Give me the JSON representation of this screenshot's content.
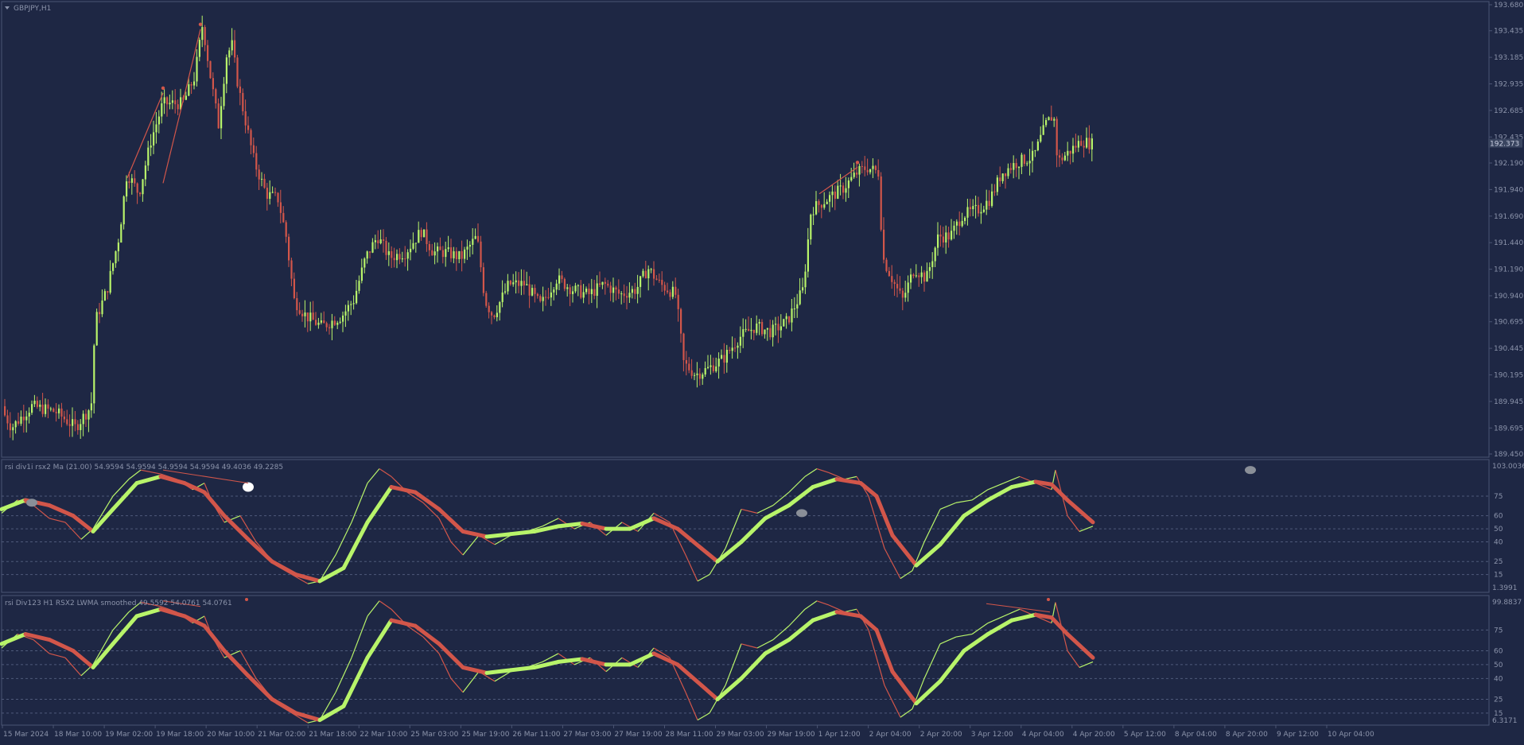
{
  "colors": {
    "background": "#1e2744",
    "grid_border": "#4a5473",
    "bull": "#b8f46a",
    "bear": "#d2564a",
    "level_line": "#4f5a7a",
    "text": "#8b93aa",
    "price_tag_bg": "#3a4560",
    "marker_grey": "#8a8f98"
  },
  "main_pane": {
    "title": "GBPJPY,H1",
    "title_icon": "triangle-down-icon",
    "current_price": "192.373",
    "price_axis": [
      "193.680",
      "193.435",
      "193.185",
      "192.935",
      "192.685",
      "192.435",
      "192.190",
      "191.940",
      "191.690",
      "191.440",
      "191.190",
      "190.940",
      "190.695",
      "190.445",
      "190.195",
      "189.945",
      "189.695",
      "189.450"
    ]
  },
  "indicator1": {
    "title": "rsi div1i rsx2 Ma (21.00) 54.9594 54.9594 54.9594 54.9594 49.4036 49.2285",
    "axis_top": "103.0036",
    "axis_bottom": "1.3991",
    "levels": [
      "75",
      "60",
      "50",
      "40",
      "25",
      "15"
    ]
  },
  "indicator2": {
    "title": "rsi Div123 H1 RSX2 LWMA smoothed  49.5592 54.0761 54.0761",
    "axis_top": "99.8837",
    "axis_bottom": "6.3171",
    "levels": [
      "75",
      "60",
      "50",
      "40",
      "25",
      "15"
    ]
  },
  "time_axis": [
    "15 Mar 2024",
    "18 Mar 10:00",
    "19 Mar 02:00",
    "19 Mar 18:00",
    "20 Mar 10:00",
    "21 Mar 02:00",
    "21 Mar 18:00",
    "22 Mar 10:00",
    "25 Mar 03:00",
    "25 Mar 19:00",
    "26 Mar 11:00",
    "27 Mar 03:00",
    "27 Mar 19:00",
    "28 Mar 11:00",
    "29 Mar 03:00",
    "29 Mar 19:00",
    "1 Apr 12:00",
    "2 Apr 04:00",
    "2 Apr 20:00",
    "3 Apr 12:00",
    "4 Apr 04:00",
    "4 Apr 20:00",
    "5 Apr 12:00",
    "8 Apr 04:00",
    "8 Apr 20:00",
    "9 Apr 12:00",
    "10 Apr 04:00"
  ],
  "chart_data": {
    "type": "candlestick",
    "symbol": "GBPJPY",
    "timeframe": "H1",
    "ylim": [
      189.45,
      193.68
    ],
    "last_price": 192.373,
    "price_path": [
      [
        0,
        189.9
      ],
      [
        15,
        189.7
      ],
      [
        40,
        189.9
      ],
      [
        70,
        189.85
      ],
      [
        95,
        189.7
      ],
      [
        115,
        189.9
      ],
      [
        120,
        190.7
      ],
      [
        135,
        191.0
      ],
      [
        150,
        191.5
      ],
      [
        160,
        192.1
      ],
      [
        175,
        191.9
      ],
      [
        190,
        192.4
      ],
      [
        205,
        192.75
      ],
      [
        230,
        192.75
      ],
      [
        245,
        193.0
      ],
      [
        255,
        193.5
      ],
      [
        265,
        193.0
      ],
      [
        275,
        192.55
      ],
      [
        285,
        193.2
      ],
      [
        292,
        193.3
      ],
      [
        300,
        192.9
      ],
      [
        320,
        192.2
      ],
      [
        335,
        191.9
      ],
      [
        350,
        191.85
      ],
      [
        360,
        191.5
      ],
      [
        370,
        190.9
      ],
      [
        385,
        190.75
      ],
      [
        405,
        190.65
      ],
      [
        430,
        190.75
      ],
      [
        445,
        190.9
      ],
      [
        460,
        191.3
      ],
      [
        475,
        191.5
      ],
      [
        490,
        191.3
      ],
      [
        510,
        191.35
      ],
      [
        530,
        191.55
      ],
      [
        545,
        191.35
      ],
      [
        560,
        191.35
      ],
      [
        580,
        191.3
      ],
      [
        600,
        191.5
      ],
      [
        610,
        190.9
      ],
      [
        620,
        190.75
      ],
      [
        640,
        191.05
      ],
      [
        660,
        191.05
      ],
      [
        680,
        190.85
      ],
      [
        700,
        191.1
      ],
      [
        720,
        191.0
      ],
      [
        740,
        190.95
      ],
      [
        760,
        191.05
      ],
      [
        780,
        190.95
      ],
      [
        800,
        191.0
      ],
      [
        815,
        191.2
      ],
      [
        830,
        191.05
      ],
      [
        850,
        190.95
      ],
      [
        860,
        190.3
      ],
      [
        875,
        190.2
      ],
      [
        890,
        190.25
      ],
      [
        910,
        190.35
      ],
      [
        930,
        190.55
      ],
      [
        950,
        190.65
      ],
      [
        970,
        190.6
      ],
      [
        990,
        190.7
      ],
      [
        1010,
        191.0
      ],
      [
        1020,
        191.75
      ],
      [
        1040,
        191.85
      ],
      [
        1060,
        191.95
      ],
      [
        1078,
        192.1
      ],
      [
        1090,
        192.15
      ],
      [
        1105,
        192.1
      ],
      [
        1110,
        191.3
      ],
      [
        1125,
        191.05
      ],
      [
        1135,
        190.9
      ],
      [
        1150,
        191.2
      ],
      [
        1165,
        191.1
      ],
      [
        1180,
        191.5
      ],
      [
        1195,
        191.5
      ],
      [
        1210,
        191.7
      ],
      [
        1230,
        191.75
      ],
      [
        1245,
        191.85
      ],
      [
        1260,
        192.1
      ],
      [
        1280,
        192.2
      ],
      [
        1300,
        192.25
      ],
      [
        1315,
        192.55
      ],
      [
        1325,
        192.65
      ],
      [
        1330,
        192.2
      ],
      [
        1345,
        192.3
      ],
      [
        1360,
        192.4
      ],
      [
        1372,
        192.37
      ]
    ],
    "indicator_rsi_div1i": {
      "levels": [
        75,
        60,
        50,
        40,
        25,
        15
      ],
      "ylim": [
        1.3991,
        103.0036
      ],
      "rsi": [
        [
          0,
          62
        ],
        [
          20,
          72
        ],
        [
          40,
          68
        ],
        [
          60,
          58
        ],
        [
          80,
          55
        ],
        [
          100,
          42
        ],
        [
          115,
          50
        ],
        [
          140,
          75
        ],
        [
          160,
          88
        ],
        [
          175,
          95
        ],
        [
          200,
          92
        ],
        [
          220,
          88
        ],
        [
          240,
          80
        ],
        [
          255,
          85
        ],
        [
          265,
          70
        ],
        [
          280,
          55
        ],
        [
          300,
          60
        ],
        [
          320,
          40
        ],
        [
          345,
          22
        ],
        [
          365,
          15
        ],
        [
          385,
          8
        ],
        [
          400,
          10
        ],
        [
          420,
          30
        ],
        [
          440,
          55
        ],
        [
          460,
          85
        ],
        [
          475,
          96
        ],
        [
          490,
          90
        ],
        [
          510,
          78
        ],
        [
          530,
          70
        ],
        [
          550,
          58
        ],
        [
          565,
          40
        ],
        [
          580,
          30
        ],
        [
          600,
          45
        ],
        [
          620,
          38
        ],
        [
          640,
          45
        ],
        [
          660,
          48
        ],
        [
          680,
          52
        ],
        [
          700,
          58
        ],
        [
          720,
          50
        ],
        [
          740,
          55
        ],
        [
          760,
          45
        ],
        [
          780,
          55
        ],
        [
          800,
          48
        ],
        [
          820,
          62
        ],
        [
          840,
          55
        ],
        [
          860,
          30
        ],
        [
          875,
          10
        ],
        [
          890,
          15
        ],
        [
          910,
          35
        ],
        [
          930,
          65
        ],
        [
          950,
          62
        ],
        [
          970,
          68
        ],
        [
          990,
          78
        ],
        [
          1010,
          90
        ],
        [
          1025,
          96
        ],
        [
          1040,
          93
        ],
        [
          1060,
          88
        ],
        [
          1075,
          90
        ],
        [
          1090,
          75
        ],
        [
          1110,
          35
        ],
        [
          1130,
          12
        ],
        [
          1145,
          18
        ],
        [
          1160,
          40
        ],
        [
          1180,
          65
        ],
        [
          1200,
          70
        ],
        [
          1220,
          72
        ],
        [
          1240,
          80
        ],
        [
          1260,
          85
        ],
        [
          1280,
          90
        ],
        [
          1300,
          85
        ],
        [
          1320,
          80
        ],
        [
          1325,
          95
        ],
        [
          1340,
          60
        ],
        [
          1355,
          48
        ],
        [
          1372,
          52
        ]
      ],
      "signal": [
        [
          0,
          65
        ],
        [
          30,
          72
        ],
        [
          60,
          68
        ],
        [
          90,
          60
        ],
        [
          115,
          48
        ],
        [
          140,
          65
        ],
        [
          170,
          85
        ],
        [
          200,
          90
        ],
        [
          230,
          85
        ],
        [
          255,
          78
        ],
        [
          280,
          60
        ],
        [
          310,
          42
        ],
        [
          340,
          25
        ],
        [
          370,
          15
        ],
        [
          400,
          10
        ],
        [
          430,
          20
        ],
        [
          460,
          55
        ],
        [
          490,
          82
        ],
        [
          520,
          78
        ],
        [
          550,
          65
        ],
        [
          580,
          48
        ],
        [
          610,
          44
        ],
        [
          640,
          46
        ],
        [
          670,
          48
        ],
        [
          700,
          52
        ],
        [
          730,
          54
        ],
        [
          760,
          50
        ],
        [
          790,
          50
        ],
        [
          820,
          58
        ],
        [
          850,
          50
        ],
        [
          880,
          35
        ],
        [
          900,
          25
        ],
        [
          930,
          40
        ],
        [
          960,
          58
        ],
        [
          990,
          68
        ],
        [
          1020,
          82
        ],
        [
          1050,
          88
        ],
        [
          1080,
          85
        ],
        [
          1100,
          75
        ],
        [
          1120,
          45
        ],
        [
          1150,
          22
        ],
        [
          1180,
          38
        ],
        [
          1210,
          60
        ],
        [
          1240,
          72
        ],
        [
          1270,
          82
        ],
        [
          1300,
          86
        ],
        [
          1320,
          84
        ],
        [
          1340,
          72
        ],
        [
          1372,
          55
        ]
      ]
    },
    "indicator_rsi_div123": {
      "levels": [
        75,
        60,
        50,
        40,
        25,
        15
      ],
      "ylim": [
        6.3171,
        99.8837
      ],
      "rsi": [
        [
          0,
          62
        ],
        [
          20,
          72
        ],
        [
          40,
          68
        ],
        [
          60,
          58
        ],
        [
          80,
          55
        ],
        [
          100,
          42
        ],
        [
          115,
          50
        ],
        [
          140,
          75
        ],
        [
          160,
          88
        ],
        [
          175,
          95
        ],
        [
          200,
          92
        ],
        [
          220,
          88
        ],
        [
          240,
          80
        ],
        [
          255,
          85
        ],
        [
          265,
          70
        ],
        [
          280,
          55
        ],
        [
          300,
          60
        ],
        [
          320,
          40
        ],
        [
          345,
          22
        ],
        [
          365,
          15
        ],
        [
          385,
          8
        ],
        [
          400,
          10
        ],
        [
          420,
          30
        ],
        [
          440,
          55
        ],
        [
          460,
          85
        ],
        [
          475,
          96
        ],
        [
          490,
          90
        ],
        [
          510,
          78
        ],
        [
          530,
          70
        ],
        [
          550,
          58
        ],
        [
          565,
          40
        ],
        [
          580,
          30
        ],
        [
          600,
          45
        ],
        [
          620,
          38
        ],
        [
          640,
          45
        ],
        [
          660,
          48
        ],
        [
          680,
          52
        ],
        [
          700,
          58
        ],
        [
          720,
          50
        ],
        [
          740,
          55
        ],
        [
          760,
          45
        ],
        [
          780,
          55
        ],
        [
          800,
          48
        ],
        [
          820,
          62
        ],
        [
          840,
          55
        ],
        [
          860,
          30
        ],
        [
          875,
          10
        ],
        [
          890,
          15
        ],
        [
          910,
          35
        ],
        [
          930,
          65
        ],
        [
          950,
          62
        ],
        [
          970,
          68
        ],
        [
          990,
          78
        ],
        [
          1010,
          90
        ],
        [
          1025,
          96
        ],
        [
          1040,
          93
        ],
        [
          1060,
          88
        ],
        [
          1075,
          90
        ],
        [
          1090,
          75
        ],
        [
          1110,
          35
        ],
        [
          1130,
          12
        ],
        [
          1145,
          18
        ],
        [
          1160,
          40
        ],
        [
          1180,
          65
        ],
        [
          1200,
          70
        ],
        [
          1220,
          72
        ],
        [
          1240,
          80
        ],
        [
          1260,
          85
        ],
        [
          1280,
          90
        ],
        [
          1300,
          85
        ],
        [
          1320,
          80
        ],
        [
          1325,
          95
        ],
        [
          1340,
          60
        ],
        [
          1355,
          48
        ],
        [
          1372,
          52
        ]
      ],
      "signal": [
        [
          0,
          65
        ],
        [
          30,
          72
        ],
        [
          60,
          68
        ],
        [
          90,
          60
        ],
        [
          115,
          48
        ],
        [
          140,
          65
        ],
        [
          170,
          85
        ],
        [
          200,
          90
        ],
        [
          230,
          85
        ],
        [
          255,
          78
        ],
        [
          280,
          60
        ],
        [
          310,
          42
        ],
        [
          340,
          25
        ],
        [
          370,
          15
        ],
        [
          400,
          10
        ],
        [
          430,
          20
        ],
        [
          460,
          55
        ],
        [
          490,
          82
        ],
        [
          520,
          78
        ],
        [
          550,
          65
        ],
        [
          580,
          48
        ],
        [
          610,
          44
        ],
        [
          640,
          46
        ],
        [
          670,
          48
        ],
        [
          700,
          52
        ],
        [
          730,
          54
        ],
        [
          760,
          50
        ],
        [
          790,
          50
        ],
        [
          820,
          58
        ],
        [
          850,
          50
        ],
        [
          880,
          35
        ],
        [
          900,
          25
        ],
        [
          930,
          40
        ],
        [
          960,
          58
        ],
        [
          990,
          68
        ],
        [
          1020,
          82
        ],
        [
          1050,
          88
        ],
        [
          1080,
          85
        ],
        [
          1100,
          75
        ],
        [
          1120,
          45
        ],
        [
          1150,
          22
        ],
        [
          1180,
          38
        ],
        [
          1210,
          60
        ],
        [
          1240,
          72
        ],
        [
          1270,
          82
        ],
        [
          1300,
          86
        ],
        [
          1320,
          84
        ],
        [
          1340,
          72
        ],
        [
          1372,
          55
        ]
      ]
    }
  }
}
